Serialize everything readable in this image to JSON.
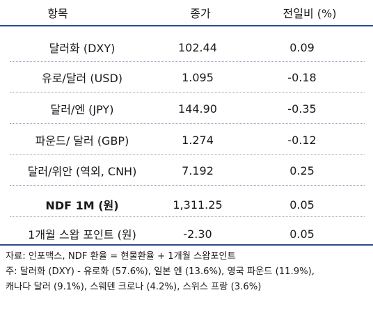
{
  "table": {
    "headers": [
      "항목",
      "종가",
      "전일비 (%)"
    ],
    "rows": [
      {
        "item": "달러화 (DXY)",
        "close": "102.44",
        "change": "0.09",
        "bold": false
      },
      {
        "item": "유로/달러 (USD)",
        "close": "1.095",
        "change": "-0.18",
        "bold": false
      },
      {
        "item": "달러/엔 (JPY)",
        "close": "144.90",
        "change": "-0.35",
        "bold": false
      },
      {
        "item": "파운드/ 달러 (GBP)",
        "close": "1.274",
        "change": "-0.12",
        "bold": false
      },
      {
        "item": "달러/위안 (역외, CNH)",
        "close": "7.192",
        "change": "0.25",
        "bold": false
      },
      {
        "item": "NDF 1M (원)",
        "close": "1,311.25",
        "change": "0.05",
        "bold": true
      },
      {
        "item": "1개월 스왑 포인트 (원)",
        "close": "-2.30",
        "change": "0.05",
        "bold": false
      }
    ]
  },
  "notes": {
    "source": "자료: 인포맥스, NDF 환율 = 현물환율 + 1개월 스왑포인트",
    "note_line1": "주: 달러화 (DXY) - 유로화 (57.6%), 일본 엔 (13.6%), 영국 파운드 (11.9%),",
    "note_line2": "캐나다 달러 (9.1%), 스웨덴 크로나 (4.2%), 스위스 프랑 (3.6%)"
  },
  "colors": {
    "rule": "#2b4a8a",
    "dotted": "#9aa6bf",
    "text": "#1a1a1a"
  }
}
